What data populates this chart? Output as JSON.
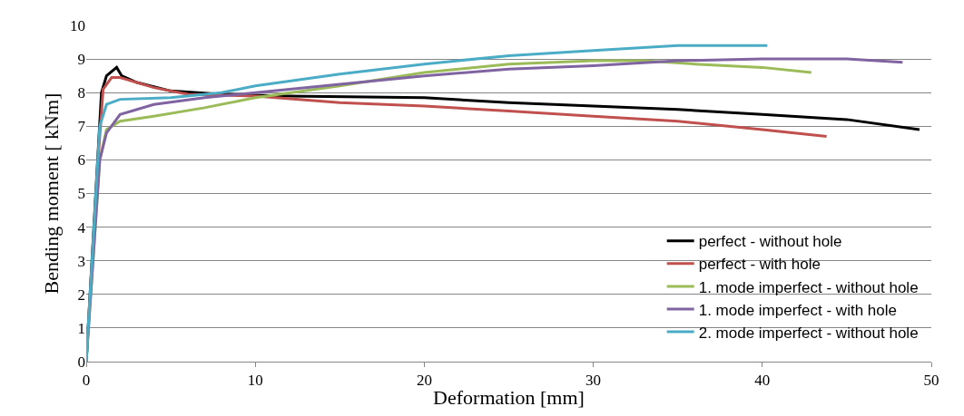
{
  "chart_data": {
    "type": "line",
    "xlabel": "Deformation [mm]",
    "ylabel": "Bending moment [ kNm]",
    "xlim": [
      0,
      50
    ],
    "xticks": [
      0,
      10,
      20,
      30,
      40,
      50
    ],
    "ylim": [
      0,
      10
    ],
    "yticks": [
      0,
      1,
      2,
      3,
      4,
      5,
      6,
      7,
      8,
      9,
      10
    ],
    "grid": "y",
    "legend": "bottom right",
    "marker": "none",
    "line_style": "solid",
    "series": [
      {
        "name": "perfect - without hole",
        "color": "#000000",
        "x": [
          0,
          0.9,
          1.2,
          1.8,
          2.1,
          3,
          5,
          8,
          12,
          20,
          25,
          30,
          35,
          40,
          45,
          49.3
        ],
        "values": [
          0,
          8,
          8.5,
          8.75,
          8.5,
          8.3,
          8.05,
          7.95,
          7.9,
          7.85,
          7.7,
          7.6,
          7.5,
          7.35,
          7.2,
          6.9
        ]
      },
      {
        "name": "perfect - with hole",
        "color": "#c0504d",
        "x": [
          0,
          0.7,
          1,
          1.5,
          2,
          4,
          6,
          10,
          15,
          20,
          25,
          30,
          35,
          40,
          43.8
        ],
        "values": [
          0,
          6,
          8.1,
          8.45,
          8.45,
          8.15,
          7.95,
          7.9,
          7.7,
          7.6,
          7.45,
          7.3,
          7.15,
          6.9,
          6.7
        ]
      },
      {
        "name": "1. mode imperfect - without hole",
        "color": "#9bbb59",
        "x": [
          0,
          0.8,
          1.2,
          2,
          4,
          7,
          10,
          15,
          20,
          25,
          30,
          33,
          36,
          40,
          42.9
        ],
        "values": [
          0,
          6,
          6.9,
          7.15,
          7.3,
          7.55,
          7.85,
          8.2,
          8.6,
          8.85,
          8.95,
          8.95,
          8.85,
          8.75,
          8.6
        ]
      },
      {
        "name": "1. mode imperfect - with hole",
        "color": "#8064a2",
        "x": [
          0,
          0.8,
          1.2,
          2,
          4,
          7,
          10,
          15,
          20,
          25,
          30,
          35,
          40,
          45,
          48.3
        ],
        "values": [
          0,
          6,
          6.8,
          7.35,
          7.65,
          7.85,
          8.0,
          8.25,
          8.5,
          8.7,
          8.8,
          8.95,
          9.0,
          9.0,
          8.9
        ]
      },
      {
        "name": "2. mode imperfect - without hole",
        "color": "#4bacc6",
        "x": [
          0,
          0.8,
          1.2,
          2,
          5,
          8,
          10,
          15,
          20,
          25,
          30,
          35,
          40.3
        ],
        "values": [
          0,
          7,
          7.65,
          7.8,
          7.85,
          8.0,
          8.2,
          8.55,
          8.85,
          9.1,
          9.25,
          9.4,
          9.4
        ]
      }
    ]
  }
}
